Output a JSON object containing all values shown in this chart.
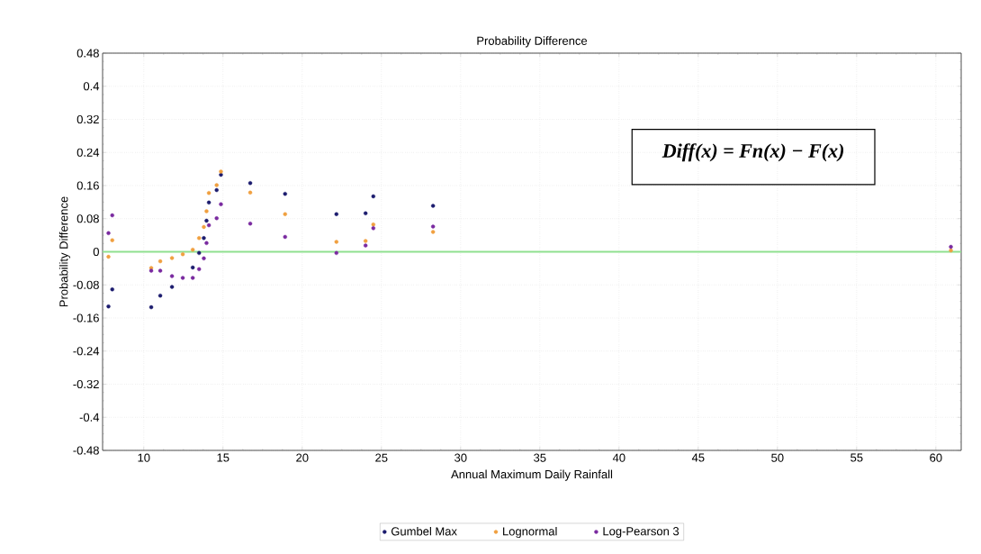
{
  "chart_data": {
    "type": "scatter",
    "title": "Probability Difference",
    "xlabel": "Annual Maximum Daily Rainfall",
    "ylabel": "Probability Difference",
    "x": [
      7.77,
      8.01,
      10.47,
      11.04,
      11.78,
      12.46,
      13.09,
      13.49,
      13.79,
      13.96,
      14.11,
      14.6,
      14.87,
      16.72,
      18.92,
      22.16,
      24.0,
      24.49,
      28.26,
      60.95
    ],
    "series": [
      {
        "name": "Gumbel Max",
        "color": "#1c1c6e",
        "values": [
          -0.132,
          -0.091,
          -0.134,
          -0.106,
          -0.085,
          null,
          -0.038,
          -0.003,
          0.033,
          0.075,
          0.119,
          0.149,
          0.186,
          0.166,
          0.14,
          0.091,
          0.093,
          0.134,
          0.111,
          null
        ]
      },
      {
        "name": "Lognormal",
        "color": "#f0a040",
        "values": [
          -0.012,
          0.028,
          -0.039,
          -0.023,
          -0.015,
          -0.006,
          0.005,
          0.033,
          0.06,
          0.098,
          0.142,
          0.161,
          0.194,
          0.143,
          0.091,
          0.024,
          0.026,
          0.066,
          0.048,
          0.003
        ]
      },
      {
        "name": "Log-Pearson 3",
        "color": "#7a2aa0",
        "values": [
          0.045,
          0.088,
          -0.046,
          -0.046,
          -0.059,
          -0.063,
          -0.063,
          -0.042,
          -0.016,
          0.021,
          0.064,
          0.081,
          0.115,
          0.068,
          0.036,
          -0.003,
          0.015,
          0.057,
          0.061,
          0.012
        ]
      }
    ],
    "xlim": [
      7.4,
      61.6
    ],
    "ylim": [
      -0.48,
      0.48
    ],
    "xticks": [
      10,
      15,
      20,
      25,
      30,
      35,
      40,
      45,
      50,
      55,
      60
    ],
    "yticks": [
      -0.48,
      -0.4,
      -0.32,
      -0.24,
      -0.16,
      -0.08,
      0,
      0.08,
      0.16,
      0.24,
      0.32,
      0.4,
      0.48
    ],
    "ref_lines": [
      {
        "axis": "y",
        "value": 0,
        "color": "#90e090"
      }
    ],
    "annotations": [
      "Diff(x) = Fn(x) − F(x)"
    ],
    "grid": true,
    "legend": "bottom"
  }
}
